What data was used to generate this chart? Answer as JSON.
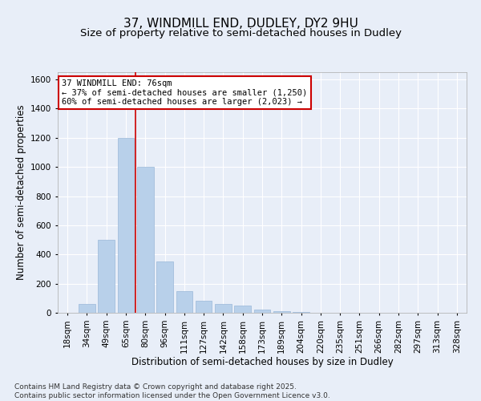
{
  "title1": "37, WINDMILL END, DUDLEY, DY2 9HU",
  "title2": "Size of property relative to semi-detached houses in Dudley",
  "xlabel": "Distribution of semi-detached houses by size in Dudley",
  "ylabel": "Number of semi-detached properties",
  "footnote": "Contains HM Land Registry data © Crown copyright and database right 2025.\nContains public sector information licensed under the Open Government Licence v3.0.",
  "categories": [
    "18sqm",
    "34sqm",
    "49sqm",
    "65sqm",
    "80sqm",
    "96sqm",
    "111sqm",
    "127sqm",
    "142sqm",
    "158sqm",
    "173sqm",
    "189sqm",
    "204sqm",
    "220sqm",
    "235sqm",
    "251sqm",
    "266sqm",
    "282sqm",
    "297sqm",
    "313sqm",
    "328sqm"
  ],
  "values": [
    0,
    60,
    500,
    1200,
    1000,
    350,
    150,
    80,
    60,
    50,
    20,
    10,
    5,
    0,
    0,
    0,
    0,
    0,
    0,
    0,
    0
  ],
  "bar_color": "#b8d0ea",
  "bar_edge_color": "#9ab8d8",
  "vline_color": "#cc0000",
  "vline_x_index": 3,
  "annotation_title": "37 WINDMILL END: 76sqm",
  "annotation_line1": "← 37% of semi-detached houses are smaller (1,250)",
  "annotation_line2": "60% of semi-detached houses are larger (2,023) →",
  "annotation_box_color": "#cc0000",
  "ylim": [
    0,
    1650
  ],
  "yticks": [
    0,
    200,
    400,
    600,
    800,
    1000,
    1200,
    1400,
    1600
  ],
  "bg_color": "#e8eef8",
  "plot_bg_color": "#e8eef8",
  "grid_color": "#ffffff",
  "title1_fontsize": 11,
  "title2_fontsize": 9.5,
  "axis_label_fontsize": 8.5,
  "tick_fontsize": 7.5,
  "footnote_fontsize": 6.5,
  "annotation_fontsize": 7.5
}
